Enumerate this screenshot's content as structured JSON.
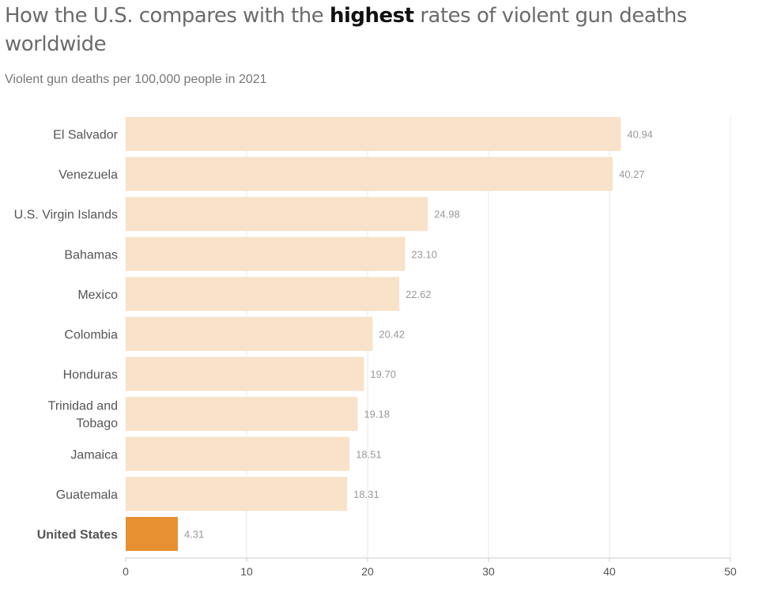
{
  "title_prefix": "How the U.S. compares with the ",
  "title_emphasis": "highest",
  "title_suffix": " rates of violent gun deaths worldwide",
  "subtitle": "Violent gun deaths per 100,000 people in 2021",
  "chart_data": {
    "type": "bar",
    "orientation": "horizontal",
    "title": "How the U.S. compares with the highest rates of violent gun deaths worldwide",
    "subtitle": "Violent gun deaths per 100,000 people in 2021",
    "categories": [
      "El Salvador",
      "Venezuela",
      "U.S. Virgin Islands",
      "Bahamas",
      "Mexico",
      "Colombia",
      "Honduras",
      "Trinidad and Tobago",
      "Jamaica",
      "Guatemala",
      "United States"
    ],
    "category_lines": [
      [
        "El Salvador"
      ],
      [
        "Venezuela"
      ],
      [
        "U.S. Virgin Islands"
      ],
      [
        "Bahamas"
      ],
      [
        "Mexico"
      ],
      [
        "Colombia"
      ],
      [
        "Honduras"
      ],
      [
        "Trinidad and",
        "Tobago"
      ],
      [
        "Jamaica"
      ],
      [
        "Guatemala"
      ],
      [
        "United States"
      ]
    ],
    "values": [
      40.94,
      40.27,
      24.98,
      23.1,
      22.62,
      20.42,
      19.7,
      19.18,
      18.51,
      18.31,
      4.31
    ],
    "value_labels": [
      "40.94",
      "40.27",
      "24.98",
      "23.10",
      "22.62",
      "20.42",
      "19.70",
      "19.18",
      "18.51",
      "18.31",
      "4.31"
    ],
    "highlight": "United States",
    "colors": {
      "default": "#f8e2c9",
      "highlight": "#e69031"
    },
    "xlim": [
      0,
      50
    ],
    "xticks": [
      0,
      10,
      20,
      30,
      40,
      50
    ],
    "xlabel": "",
    "ylabel": "",
    "grid": true,
    "legend": "none"
  }
}
